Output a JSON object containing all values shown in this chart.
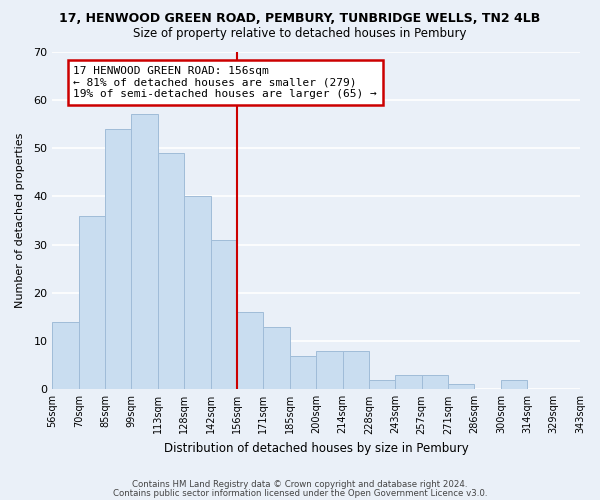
{
  "title": "17, HENWOOD GREEN ROAD, PEMBURY, TUNBRIDGE WELLS, TN2 4LB",
  "subtitle": "Size of property relative to detached houses in Pembury",
  "xlabel": "Distribution of detached houses by size in Pembury",
  "ylabel": "Number of detached properties",
  "bin_labels": [
    "56sqm",
    "70sqm",
    "85sqm",
    "99sqm",
    "113sqm",
    "128sqm",
    "142sqm",
    "156sqm",
    "171sqm",
    "185sqm",
    "200sqm",
    "214sqm",
    "228sqm",
    "243sqm",
    "257sqm",
    "271sqm",
    "286sqm",
    "300sqm",
    "314sqm",
    "329sqm",
    "343sqm"
  ],
  "bar_heights": [
    14,
    36,
    54,
    57,
    49,
    40,
    31,
    16,
    13,
    7,
    8,
    8,
    2,
    3,
    3,
    1,
    0,
    2,
    0,
    0
  ],
  "bar_color": "#c9ddf0",
  "bar_edge_color": "#a0bcd8",
  "marker_label_value": "156sqm",
  "marker_color": "#cc0000",
  "annotation_title": "17 HENWOOD GREEN ROAD: 156sqm",
  "annotation_line1": "← 81% of detached houses are smaller (279)",
  "annotation_line2": "19% of semi-detached houses are larger (65) →",
  "annotation_box_color": "#ffffff",
  "annotation_box_edge": "#cc0000",
  "ylim": [
    0,
    70
  ],
  "yticks": [
    0,
    10,
    20,
    30,
    40,
    50,
    60,
    70
  ],
  "footer1": "Contains HM Land Registry data © Crown copyright and database right 2024.",
  "footer2": "Contains public sector information licensed under the Open Government Licence v3.0.",
  "bg_color": "#eaf0f8"
}
